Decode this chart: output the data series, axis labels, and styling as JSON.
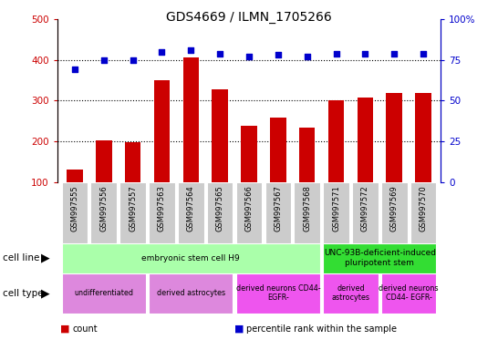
{
  "title": "GDS4669 / ILMN_1705266",
  "samples": [
    "GSM997555",
    "GSM997556",
    "GSM997557",
    "GSM997563",
    "GSM997564",
    "GSM997565",
    "GSM997566",
    "GSM997567",
    "GSM997568",
    "GSM997571",
    "GSM997572",
    "GSM997569",
    "GSM997570"
  ],
  "counts": [
    130,
    202,
    198,
    350,
    406,
    328,
    238,
    258,
    233,
    302,
    308,
    318,
    318
  ],
  "percentiles": [
    69,
    75,
    75,
    80,
    81,
    79,
    77,
    78,
    77,
    79,
    79,
    79,
    79
  ],
  "ylim_left": [
    100,
    500
  ],
  "ylim_right": [
    0,
    100
  ],
  "yticks_left": [
    100,
    200,
    300,
    400,
    500
  ],
  "yticks_right": [
    0,
    25,
    50,
    75,
    100
  ],
  "bar_color": "#cc0000",
  "dot_color": "#0000cc",
  "cell_line_groups": [
    {
      "label": "embryonic stem cell H9",
      "start": 0,
      "end": 8,
      "color": "#aaffaa"
    },
    {
      "label": "UNC-93B-deficient-induced\npluripotent stem",
      "start": 9,
      "end": 12,
      "color": "#33dd33"
    }
  ],
  "cell_type_groups": [
    {
      "label": "undifferentiated",
      "start": 0,
      "end": 2,
      "color": "#dd88dd"
    },
    {
      "label": "derived astrocytes",
      "start": 3,
      "end": 5,
      "color": "#dd88dd"
    },
    {
      "label": "derived neurons CD44-\nEGFR-",
      "start": 6,
      "end": 8,
      "color": "#ee55ee"
    },
    {
      "label": "derived\nastrocytes",
      "start": 9,
      "end": 10,
      "color": "#ee55ee"
    },
    {
      "label": "derived neurons\nCD44- EGFR-",
      "start": 11,
      "end": 12,
      "color": "#ee55ee"
    }
  ],
  "legend_items": [
    {
      "label": "count",
      "color": "#cc0000"
    },
    {
      "label": "percentile rank within the sample",
      "color": "#0000cc"
    }
  ],
  "sample_bg_color": "#cccccc",
  "bar_bottom": 100
}
